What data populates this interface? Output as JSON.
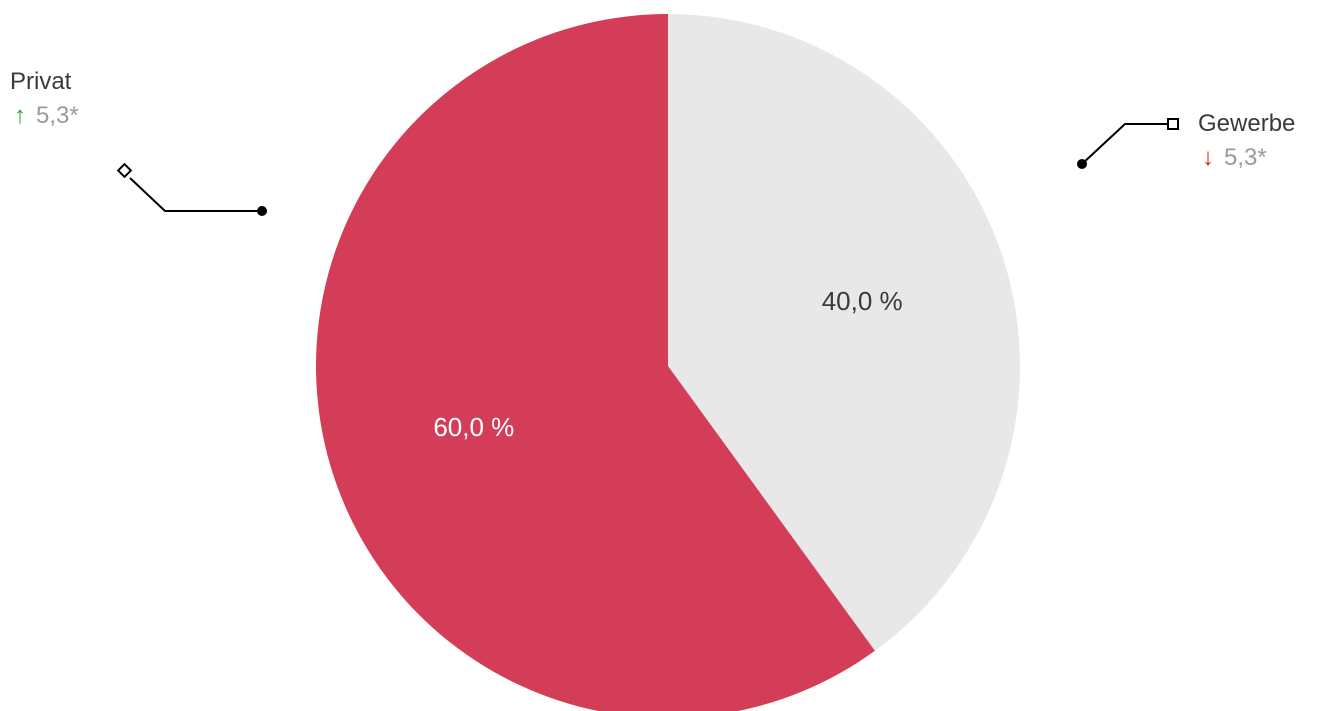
{
  "chart_data": {
    "type": "pie",
    "slices": [
      {
        "name": "Gewerbe",
        "value": 40.0,
        "value_label": "40,0 %",
        "color": "#e8e8e8",
        "label_color": "#3a3a3a",
        "change": "5,3*",
        "change_direction": "down",
        "change_arrow": "↓",
        "arrow_color": "#d61f1f"
      },
      {
        "name": "Privat",
        "value": 60.0,
        "value_label": "60,0 %",
        "color": "#d43d57",
        "label_color": "#ffffff",
        "change": "5,3*",
        "change_direction": "up",
        "change_arrow": "↑",
        "arrow_color": "#2fa52f"
      }
    ],
    "start": "12 o'clock",
    "direction": "clockwise",
    "legend": "callouts"
  }
}
